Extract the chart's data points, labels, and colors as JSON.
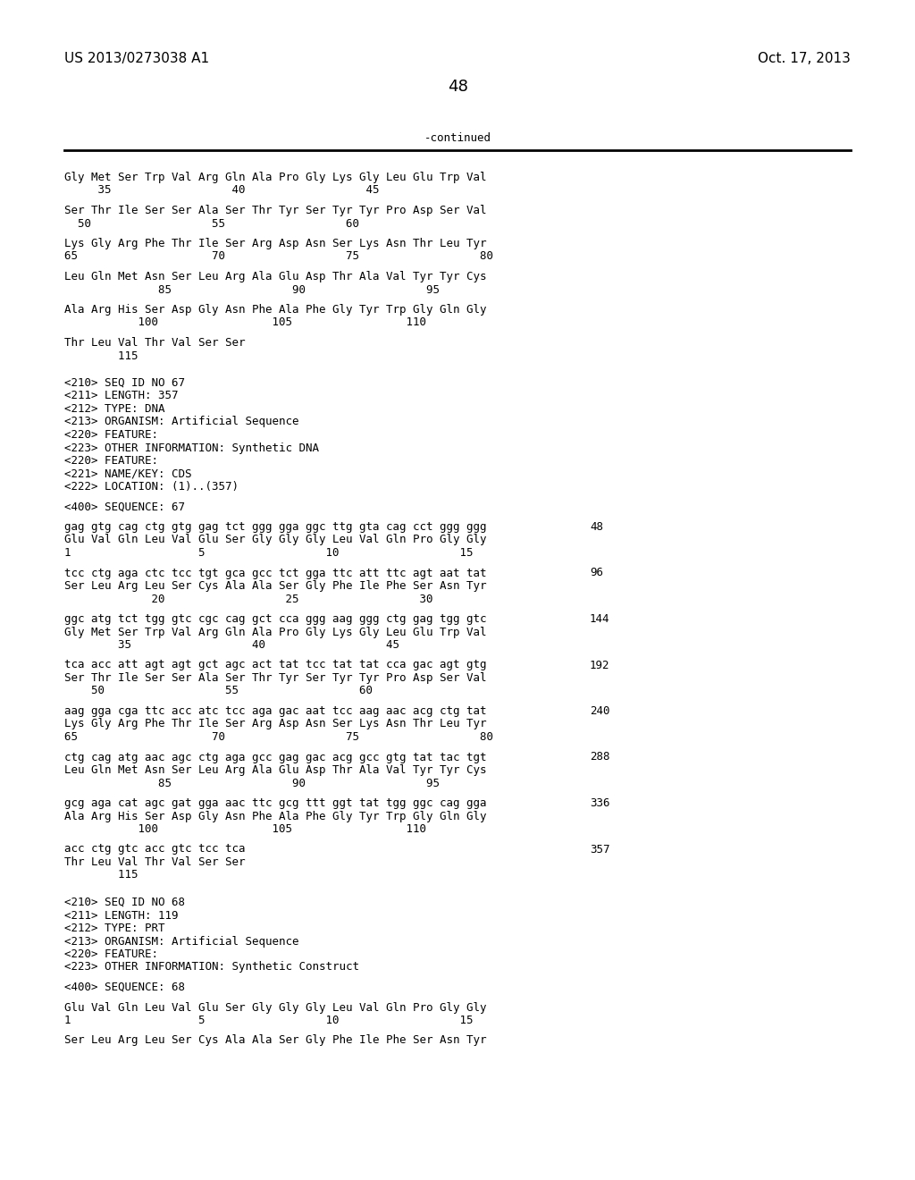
{
  "header_left": "US 2013/0273038 A1",
  "header_right": "Oct. 17, 2013",
  "page_number": "48",
  "continued_label": "-continued",
  "background_color": "#ffffff",
  "text_color": "#000000",
  "lines": [
    {
      "text": "Gly Met Ser Trp Val Arg Gln Ala Pro Gly Lys Gly Leu Glu Trp Val",
      "type": "seq"
    },
    {
      "text": "     35                  40                  45",
      "type": "num"
    },
    {
      "text": "",
      "type": "blank"
    },
    {
      "text": "Ser Thr Ile Ser Ser Ala Ser Thr Tyr Ser Tyr Tyr Pro Asp Ser Val",
      "type": "seq"
    },
    {
      "text": "  50                  55                  60",
      "type": "num"
    },
    {
      "text": "",
      "type": "blank"
    },
    {
      "text": "Lys Gly Arg Phe Thr Ile Ser Arg Asp Asn Ser Lys Asn Thr Leu Tyr",
      "type": "seq"
    },
    {
      "text": "65                    70                  75                  80",
      "type": "num"
    },
    {
      "text": "",
      "type": "blank"
    },
    {
      "text": "Leu Gln Met Asn Ser Leu Arg Ala Glu Asp Thr Ala Val Tyr Tyr Cys",
      "type": "seq"
    },
    {
      "text": "              85                  90                  95",
      "type": "num"
    },
    {
      "text": "",
      "type": "blank"
    },
    {
      "text": "Ala Arg His Ser Asp Gly Asn Phe Ala Phe Gly Tyr Trp Gly Gln Gly",
      "type": "seq"
    },
    {
      "text": "           100                 105                 110",
      "type": "num"
    },
    {
      "text": "",
      "type": "blank"
    },
    {
      "text": "Thr Leu Val Thr Val Ser Ser",
      "type": "seq"
    },
    {
      "text": "        115",
      "type": "num"
    },
    {
      "text": "",
      "type": "blank"
    },
    {
      "text": "",
      "type": "blank"
    },
    {
      "text": "<210> SEQ ID NO 67",
      "type": "meta"
    },
    {
      "text": "<211> LENGTH: 357",
      "type": "meta"
    },
    {
      "text": "<212> TYPE: DNA",
      "type": "meta"
    },
    {
      "text": "<213> ORGANISM: Artificial Sequence",
      "type": "meta"
    },
    {
      "text": "<220> FEATURE:",
      "type": "meta"
    },
    {
      "text": "<223> OTHER INFORMATION: Synthetic DNA",
      "type": "meta"
    },
    {
      "text": "<220> FEATURE:",
      "type": "meta"
    },
    {
      "text": "<221> NAME/KEY: CDS",
      "type": "meta"
    },
    {
      "text": "<222> LOCATION: (1)..(357)",
      "type": "meta"
    },
    {
      "text": "",
      "type": "blank"
    },
    {
      "text": "<400> SEQUENCE: 67",
      "type": "meta"
    },
    {
      "text": "",
      "type": "blank"
    },
    {
      "text": "gag gtg cag ctg gtg gag tct ggg gga ggc ttg gta cag cct ggg ggg",
      "type": "dna",
      "num": "48"
    },
    {
      "text": "Glu Val Gln Leu Val Glu Ser Gly Gly Gly Leu Val Gln Pro Gly Gly",
      "type": "seq"
    },
    {
      "text": "1                   5                  10                  15",
      "type": "num"
    },
    {
      "text": "",
      "type": "blank"
    },
    {
      "text": "tcc ctg aga ctc tcc tgt gca gcc tct gga ttc att ttc agt aat tat",
      "type": "dna",
      "num": "96"
    },
    {
      "text": "Ser Leu Arg Leu Ser Cys Ala Ala Ser Gly Phe Ile Phe Ser Asn Tyr",
      "type": "seq"
    },
    {
      "text": "             20                  25                  30",
      "type": "num"
    },
    {
      "text": "",
      "type": "blank"
    },
    {
      "text": "ggc atg tct tgg gtc cgc cag gct cca ggg aag ggg ctg gag tgg gtc",
      "type": "dna",
      "num": "144"
    },
    {
      "text": "Gly Met Ser Trp Val Arg Gln Ala Pro Gly Lys Gly Leu Glu Trp Val",
      "type": "seq"
    },
    {
      "text": "        35                  40                  45",
      "type": "num"
    },
    {
      "text": "",
      "type": "blank"
    },
    {
      "text": "tca acc att agt agt gct agc act tat tcc tat tat cca gac agt gtg",
      "type": "dna",
      "num": "192"
    },
    {
      "text": "Ser Thr Ile Ser Ser Ala Ser Thr Tyr Ser Tyr Tyr Pro Asp Ser Val",
      "type": "seq"
    },
    {
      "text": "    50                  55                  60",
      "type": "num"
    },
    {
      "text": "",
      "type": "blank"
    },
    {
      "text": "aag gga cga ttc acc atc tcc aga gac aat tcc aag aac acg ctg tat",
      "type": "dna",
      "num": "240"
    },
    {
      "text": "Lys Gly Arg Phe Thr Ile Ser Arg Asp Asn Ser Lys Asn Thr Leu Tyr",
      "type": "seq"
    },
    {
      "text": "65                    70                  75                  80",
      "type": "num"
    },
    {
      "text": "",
      "type": "blank"
    },
    {
      "text": "ctg cag atg aac agc ctg aga gcc gag gac acg gcc gtg tat tac tgt",
      "type": "dna",
      "num": "288"
    },
    {
      "text": "Leu Gln Met Asn Ser Leu Arg Ala Glu Asp Thr Ala Val Tyr Tyr Cys",
      "type": "seq"
    },
    {
      "text": "              85                  90                  95",
      "type": "num"
    },
    {
      "text": "",
      "type": "blank"
    },
    {
      "text": "gcg aga cat agc gat gga aac ttc gcg ttt ggt tat tgg ggc cag gga",
      "type": "dna",
      "num": "336"
    },
    {
      "text": "Ala Arg His Ser Asp Gly Asn Phe Ala Phe Gly Tyr Trp Gly Gln Gly",
      "type": "seq"
    },
    {
      "text": "           100                 105                 110",
      "type": "num"
    },
    {
      "text": "",
      "type": "blank"
    },
    {
      "text": "acc ctg gtc acc gtc tcc tca",
      "type": "dna",
      "num": "357"
    },
    {
      "text": "Thr Leu Val Thr Val Ser Ser",
      "type": "seq"
    },
    {
      "text": "        115",
      "type": "num"
    },
    {
      "text": "",
      "type": "blank"
    },
    {
      "text": "",
      "type": "blank"
    },
    {
      "text": "<210> SEQ ID NO 68",
      "type": "meta"
    },
    {
      "text": "<211> LENGTH: 119",
      "type": "meta"
    },
    {
      "text": "<212> TYPE: PRT",
      "type": "meta"
    },
    {
      "text": "<213> ORGANISM: Artificial Sequence",
      "type": "meta"
    },
    {
      "text": "<220> FEATURE:",
      "type": "meta"
    },
    {
      "text": "<223> OTHER INFORMATION: Synthetic Construct",
      "type": "meta"
    },
    {
      "text": "",
      "type": "blank"
    },
    {
      "text": "<400> SEQUENCE: 68",
      "type": "meta"
    },
    {
      "text": "",
      "type": "blank"
    },
    {
      "text": "Glu Val Gln Leu Val Glu Ser Gly Gly Gly Leu Val Gln Pro Gly Gly",
      "type": "seq"
    },
    {
      "text": "1                   5                  10                  15",
      "type": "num"
    },
    {
      "text": "",
      "type": "blank"
    },
    {
      "text": "Ser Leu Arg Leu Ser Cys Ala Ala Ser Gly Phe Ile Phe Ser Asn Tyr",
      "type": "seq"
    }
  ]
}
